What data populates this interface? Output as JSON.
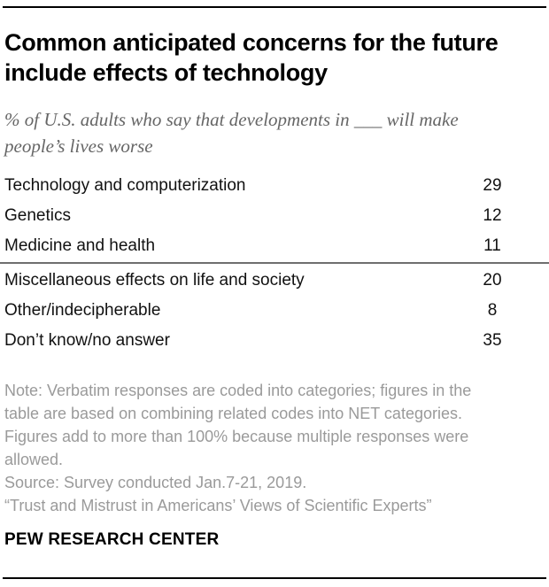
{
  "header": {
    "title": "Common anticipated concerns for the future include effects of technology",
    "subtitle": "% of U.S. adults who say that developments in ___ will make people’s lives worse"
  },
  "table": {
    "rows": [
      {
        "label": "Technology and computerization",
        "value": "29"
      },
      {
        "label": "Genetics",
        "value": "12"
      },
      {
        "label": "Medicine and health",
        "value": "11"
      },
      {
        "label": "Miscellaneous effects on life and society",
        "value": "20"
      },
      {
        "label": "Other/indecipherable",
        "value": "8"
      },
      {
        "label": "Don’t know/no answer",
        "value": "35"
      }
    ]
  },
  "footer": {
    "note_lines": [
      "Note: Verbatim responses are coded into categories; figures in the",
      "table are based on combining related codes into NET categories.",
      "Figures add to more than 100% because multiple responses were",
      "allowed."
    ],
    "source": "Source: Survey conducted Jan.7-21, 2019.",
    "report_title": "“Trust and Mistrust in Americans’ Views of Scientific Experts”",
    "brand": "PEW RESEARCH CENTER"
  },
  "chart_data": {
    "type": "table",
    "title": "Common anticipated concerns for the future include effects of technology",
    "subtitle": "% of U.S. adults who say that developments in ___ will make people’s lives worse",
    "categories": [
      "Technology and computerization",
      "Genetics",
      "Medicine and health",
      "Miscellaneous effects on life and society",
      "Other/indecipherable",
      "Don’t know/no answer"
    ],
    "values": [
      29,
      12,
      11,
      20,
      8,
      35
    ],
    "unit": "% of U.S. adults",
    "group_divider_after_index": 2,
    "note": "Note: Verbatim responses are coded into categories; figures in the table are based on combining related codes into NET categories. Figures add to more than 100% because multiple responses were allowed.",
    "source": "Source: Survey conducted Jan.7-21, 2019.",
    "report_title": "“Trust and Mistrust in Americans’ Views of Scientific Experts”"
  },
  "colors": {
    "title_text": "#000000",
    "subtitle_text": "#666666",
    "table_text": "#111111",
    "note_text": "#9a9a9a",
    "group_divider": "#6e6e6e",
    "rule": "#000000",
    "background": "#ffffff"
  }
}
